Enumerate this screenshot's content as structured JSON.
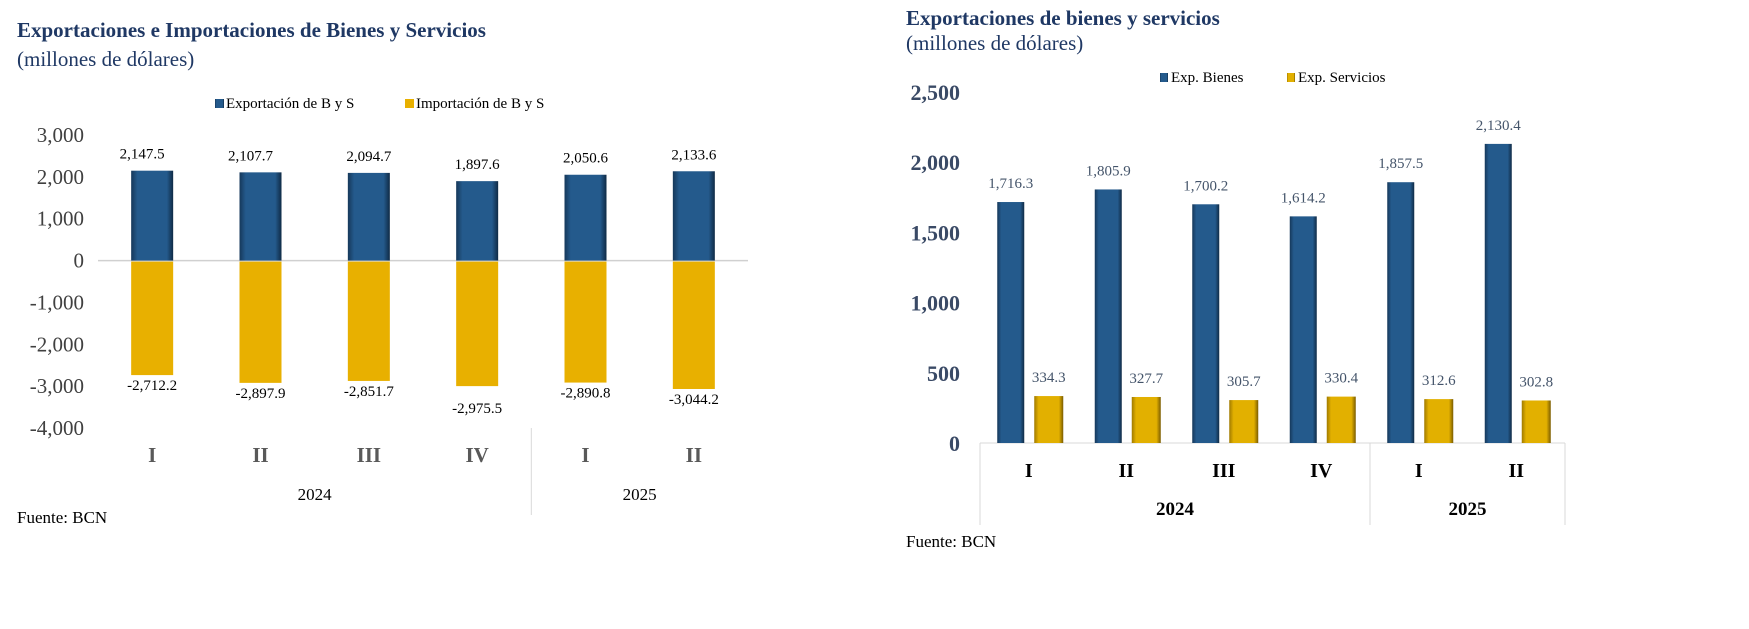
{
  "chart_data": [
    {
      "type": "bar",
      "title": "Exportaciones e Importaciones de Bienes y Servicios",
      "subtitle": "(millones de dólares)",
      "categories": [
        "I",
        "II",
        "III",
        "IV",
        "I",
        "II"
      ],
      "groups": [
        {
          "label": "2024",
          "count": 4
        },
        {
          "label": "2025",
          "count": 2
        }
      ],
      "series": [
        {
          "name": "Exportación de B y S",
          "color": "#1f4e79",
          "values": [
            2147.5,
            2107.7,
            2094.7,
            1897.6,
            2050.6,
            2133.6
          ],
          "labels": [
            "2,147.5",
            "2,107.7",
            "2,094.7",
            "1,897.6",
            "2,050.6",
            "2,133.6"
          ]
        },
        {
          "name": "Importación de B y S",
          "color": "#e8b000",
          "values": [
            -2712.2,
            -2897.9,
            -2851.7,
            -2975.5,
            -2890.8,
            -3044.2
          ],
          "labels": [
            "-2,712.2",
            "-2,897.9",
            "-2,851.7",
            "-2,975.5",
            "-2,890.8",
            "-3,044.2"
          ]
        }
      ],
      "ylim": [
        -4000,
        3000
      ],
      "yticks": [
        "3,000",
        "2,000",
        "1,000",
        "0",
        "-1,000",
        "-2,000",
        "-3,000",
        "-4,000"
      ],
      "ytick_values": [
        3000,
        2000,
        1000,
        0,
        -1000,
        -2000,
        -3000,
        -4000
      ],
      "legend": "top",
      "source": "Fuente: BCN"
    },
    {
      "type": "bar",
      "title": "Exportaciones de bienes y servicios",
      "subtitle": "(millones de dólares)",
      "categories": [
        "I",
        "II",
        "III",
        "IV",
        "I",
        "II"
      ],
      "groups": [
        {
          "label": "2024",
          "count": 4
        },
        {
          "label": "2025",
          "count": 2
        }
      ],
      "series": [
        {
          "name": "Exp. Bienes",
          "color": "#1f4e79",
          "values": [
            1716.3,
            1805.9,
            1700.2,
            1614.2,
            1857.5,
            2130.4
          ],
          "labels": [
            "1,716.3",
            "1,805.9",
            "1,700.2",
            "1,614.2",
            "1,857.5",
            "2,130.4"
          ]
        },
        {
          "name": "Exp. Servicios",
          "color": "#d4a400",
          "values": [
            334.3,
            327.7,
            305.7,
            330.4,
            312.6,
            302.8
          ],
          "labels": [
            "334.3",
            "327.7",
            "305.7",
            "330.4",
            "312.6",
            "302.8"
          ]
        }
      ],
      "ylim": [
        0,
        2500
      ],
      "yticks": [
        "2,500",
        "2,000",
        "1,500",
        "1,000",
        "500",
        "0"
      ],
      "ytick_values": [
        2500,
        2000,
        1500,
        1000,
        500,
        0
      ],
      "legend": "top-right",
      "source": "Fuente: BCN"
    }
  ]
}
